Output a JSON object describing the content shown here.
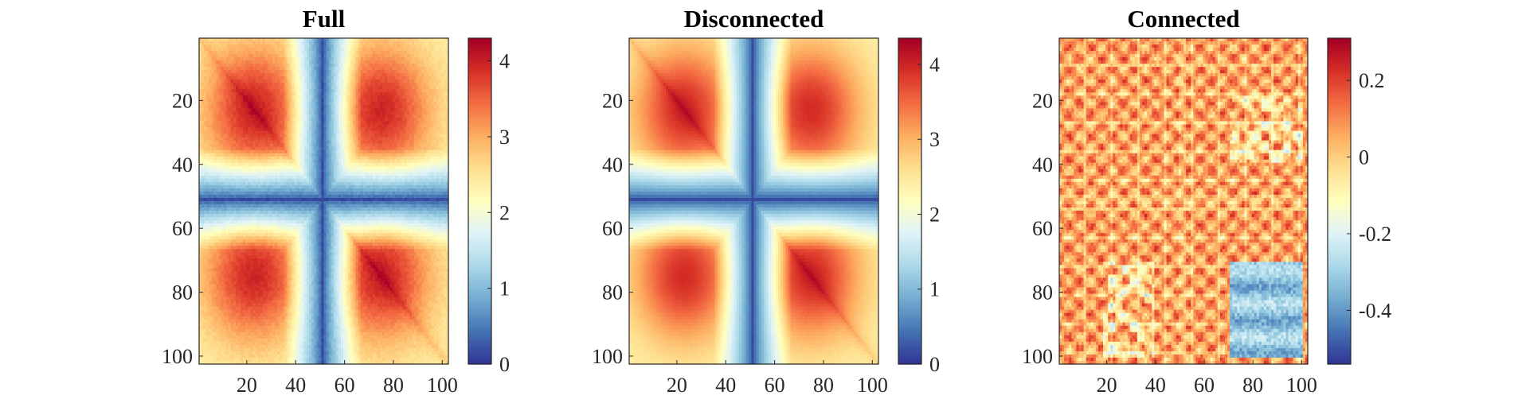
{
  "chart_data": [
    {
      "type": "heatmap",
      "title": "Full",
      "pattern": "full",
      "grid_size": 102,
      "x_ticks": [
        20,
        40,
        60,
        80,
        100
      ],
      "y_ticks": [
        20,
        40,
        60,
        80,
        100
      ],
      "x_tick_labels": [
        "20",
        "40",
        "60",
        "80",
        "100"
      ],
      "y_tick_labels": [
        "20",
        "40",
        "60",
        "80",
        "100"
      ],
      "color_range": [
        0,
        4.3
      ],
      "colorbar_ticks": [
        0,
        1,
        2,
        3,
        4
      ],
      "colorbar_tick_labels": [
        "0",
        "1",
        "2",
        "3",
        "4"
      ],
      "show_x_tick_labels": true,
      "colormap": "RdYlBu_r"
    },
    {
      "type": "heatmap",
      "title": "Disconnected",
      "pattern": "disconnected",
      "grid_size": 102,
      "x_ticks": [
        20,
        40,
        60,
        80,
        100
      ],
      "y_ticks": [
        20,
        40,
        60,
        80,
        100
      ],
      "x_tick_labels": [
        "20",
        "40",
        "60",
        "80",
        "100"
      ],
      "y_tick_labels": [
        "20",
        "40",
        "60",
        "80",
        "100"
      ],
      "color_range": [
        0,
        4.35
      ],
      "colorbar_ticks": [
        0,
        1,
        2,
        3,
        4
      ],
      "colorbar_tick_labels": [
        "0",
        "1",
        "2",
        "3",
        "4"
      ],
      "show_x_tick_labels": true,
      "colormap": "RdYlBu_r"
    },
    {
      "type": "heatmap",
      "title": "Connected",
      "pattern": "connected",
      "grid_size": 102,
      "x_ticks": [
        20,
        40,
        60,
        80,
        100
      ],
      "y_ticks": [
        20,
        40,
        60,
        80,
        100
      ],
      "x_tick_labels": [
        "20",
        "40",
        "60",
        "80",
        "100"
      ],
      "y_tick_labels": [
        "20",
        "40",
        "60",
        "80",
        "100"
      ],
      "color_range": [
        -0.54,
        0.31
      ],
      "colorbar_ticks": [
        -0.4,
        -0.2,
        0,
        0.2
      ],
      "colorbar_tick_labels": [
        "-0.4",
        "-0.2",
        "0",
        "0.2"
      ],
      "show_x_tick_labels": true,
      "colormap": "RdYlBu_r"
    }
  ],
  "colors": {
    "colormap_stops": [
      "#313695",
      "#4575b4",
      "#74add1",
      "#abd9e9",
      "#e0f3f8",
      "#ffffbf",
      "#fee090",
      "#fdae61",
      "#f46d43",
      "#d73027",
      "#a50026"
    ]
  }
}
